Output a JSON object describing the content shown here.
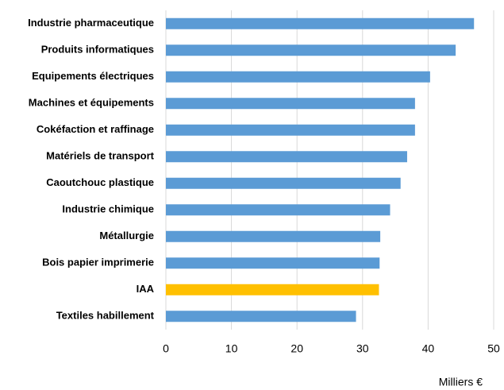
{
  "chart_data": {
    "type": "hbar",
    "categories": [
      "Industrie pharmaceutique",
      "Produits informatiques",
      "Equipements électriques",
      "Machines et équipements",
      "Cokéfaction et raffinage",
      "Matériels de transport",
      "Caoutchouc plastique",
      "Industrie chimique",
      "Métallurgie",
      "Bois papier imprimerie",
      "IAA",
      "Textiles habillement"
    ],
    "values": [
      47,
      44.2,
      40.3,
      38,
      38,
      36.8,
      35.8,
      34.2,
      32.7,
      32.6,
      32.5,
      29
    ],
    "colors": [
      "#5b9bd5",
      "#5b9bd5",
      "#5b9bd5",
      "#5b9bd5",
      "#5b9bd5",
      "#5b9bd5",
      "#5b9bd5",
      "#5b9bd5",
      "#5b9bd5",
      "#5b9bd5",
      "#ffc000",
      "#5b9bd5"
    ],
    "xlabel": "Milliers €",
    "xlim": [
      0,
      50
    ],
    "xticks": [
      0,
      10,
      20,
      30,
      40,
      50
    ],
    "grid": true
  }
}
